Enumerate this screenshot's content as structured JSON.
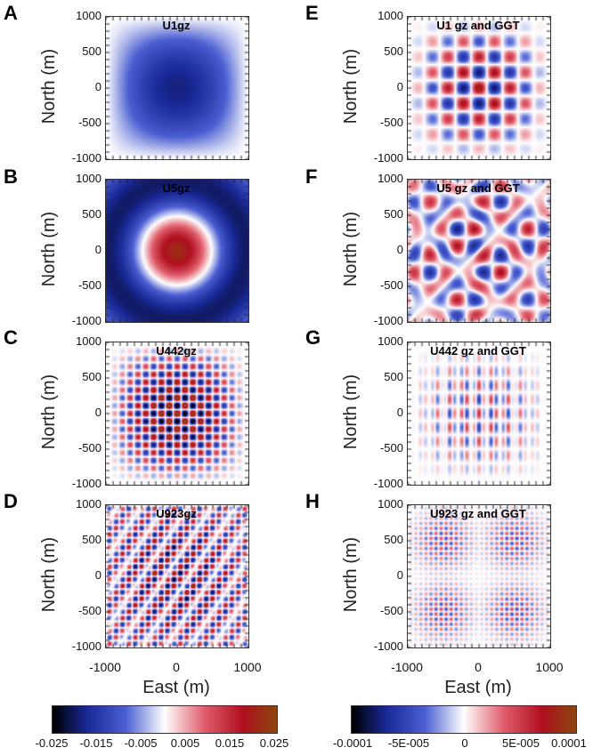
{
  "panels": [
    {
      "letter": "A",
      "title": "U1gz"
    },
    {
      "letter": "B",
      "title": "U5gz"
    },
    {
      "letter": "C",
      "title": "U442gz"
    },
    {
      "letter": "D",
      "title": "U923gz"
    },
    {
      "letter": "E",
      "title": "U1 gz and GGT"
    },
    {
      "letter": "F",
      "title": "U5 gz and GGT"
    },
    {
      "letter": "G",
      "title": "U442 gz and GGT"
    },
    {
      "letter": "H",
      "title": "U923 gz and GGT"
    }
  ],
  "axes": {
    "ylabel": "North (m)",
    "xlabel": "East (m)",
    "yticks": [
      "1000",
      "500",
      "0",
      "-500",
      "-1000"
    ],
    "xticks": [
      "-1000",
      "0",
      "1000"
    ]
  },
  "colorbars": [
    {
      "ticks": [
        "-0.025",
        "-0.015",
        "-0.005",
        "0.005",
        "0.015",
        "0.025"
      ],
      "range": [
        -0.025,
        0.025
      ]
    },
    {
      "ticks": [
        "-0.0001",
        "-5E-005",
        "0",
        "5E-005",
        "0.0001"
      ],
      "range": [
        -0.0001,
        0.0001
      ]
    }
  ],
  "chart_data": {
    "type": "heatmap",
    "colormap": [
      "#000000",
      "#1a2a9a",
      "#4a5fd0",
      "#ffffff",
      "#e06070",
      "#b01020",
      "#8a4a10"
    ],
    "panels": [
      {
        "id": "A",
        "title": "U1gz",
        "x_range": [
          -1000,
          1000
        ],
        "y_range": [
          -1000,
          1000
        ]
      },
      {
        "id": "B",
        "title": "U5gz",
        "x_range": [
          -1000,
          1000
        ],
        "y_range": [
          -1000,
          1000
        ]
      },
      {
        "id": "C",
        "title": "U442gz",
        "x_range": [
          -1000,
          1000
        ],
        "y_range": [
          -1000,
          1000
        ]
      },
      {
        "id": "D",
        "title": "U923gz",
        "x_range": [
          -1000,
          1000
        ],
        "y_range": [
          -1000,
          1000
        ]
      },
      {
        "id": "E",
        "title": "U1 gz and GGT",
        "x_range": [
          -1000,
          1000
        ],
        "y_range": [
          -1000,
          1000
        ]
      },
      {
        "id": "F",
        "title": "U5 gz and GGT",
        "x_range": [
          -1000,
          1000
        ],
        "y_range": [
          -1000,
          1000
        ]
      },
      {
        "id": "G",
        "title": "U442 gz and GGT",
        "x_range": [
          -1000,
          1000
        ],
        "y_range": [
          -1000,
          1000
        ]
      },
      {
        "id": "H",
        "title": "U923 gz and GGT",
        "x_range": [
          -1000,
          1000
        ],
        "y_range": [
          -1000,
          1000
        ]
      }
    ],
    "colorbar_left": {
      "range": [
        -0.025,
        0.025
      ]
    },
    "colorbar_right": {
      "range": [
        -0.0001,
        0.0001
      ]
    }
  }
}
